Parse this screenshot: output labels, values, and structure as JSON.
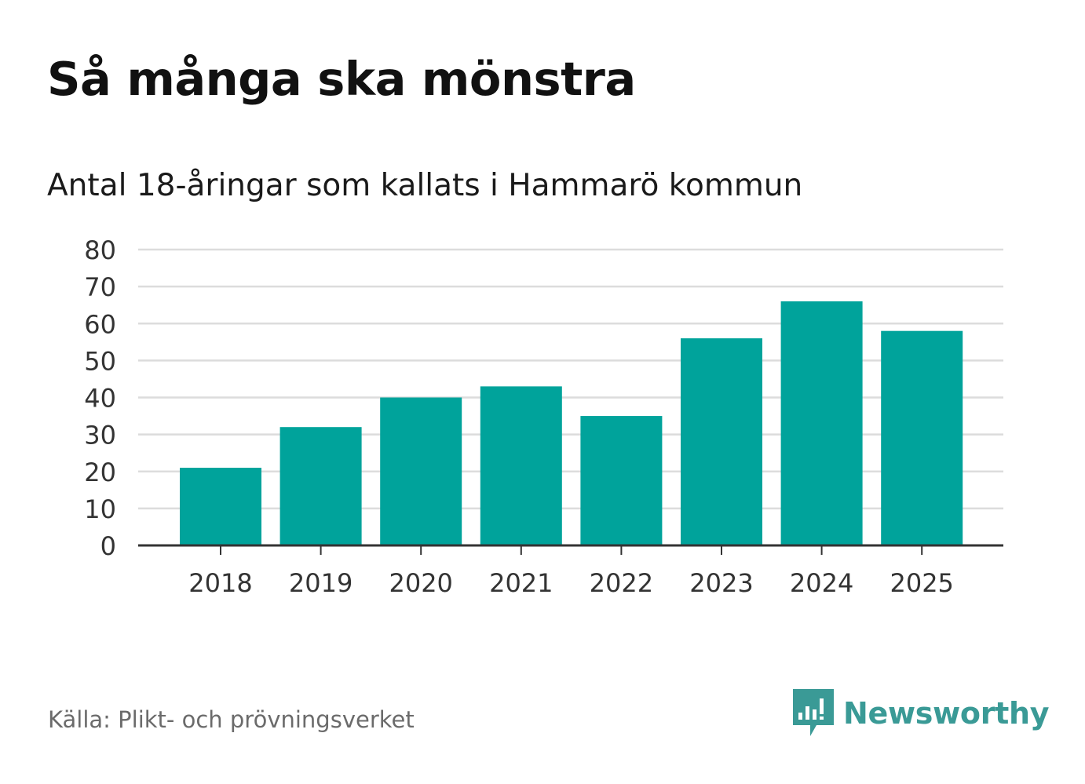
{
  "title": "Så många ska mönstra",
  "subtitle": "Antal 18-åringar som kallats i Hammarö kommun",
  "source": "Källa: Plikt- och prövningsverket",
  "brand": {
    "name": "Newsworthy",
    "icon": "newsworthy-logo-icon",
    "color": "#3a9a96"
  },
  "colors": {
    "bar": "#00a39b",
    "grid": "#dcdcdc",
    "axis": "#333333"
  },
  "chart_data": {
    "type": "bar",
    "title": "Så många ska mönstra",
    "subtitle": "Antal 18-åringar som kallats i Hammarö kommun",
    "categories": [
      "2018",
      "2019",
      "2020",
      "2021",
      "2022",
      "2023",
      "2024",
      "2025"
    ],
    "values": [
      21,
      32,
      40,
      43,
      35,
      56,
      66,
      58
    ],
    "xlabel": "",
    "ylabel": "",
    "ylim": [
      0,
      80
    ],
    "yticks": [
      0,
      10,
      20,
      30,
      40,
      50,
      60,
      70,
      80
    ],
    "grid": true
  }
}
